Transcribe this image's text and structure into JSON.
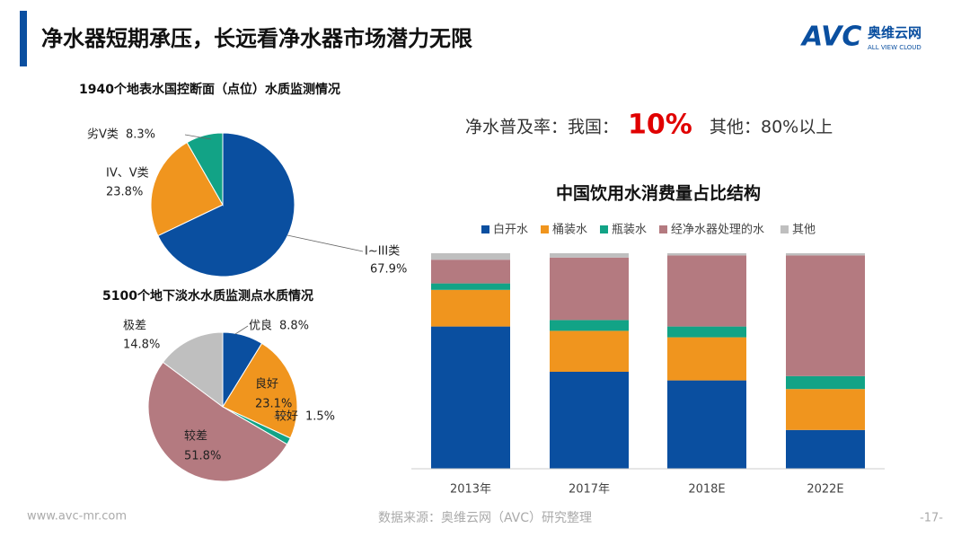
{
  "header": {
    "title": "净水器短期承压，长远看净水器市场潜力无限",
    "logo": "AVC",
    "logo_cn": "奥维云网",
    "logo_en": "ALL VIEW CLOUD"
  },
  "note": {
    "label": "净水普及率：我国：",
    "highlight": "10%",
    "other": "其他：80%以上"
  },
  "footer": {
    "site": "www.avc-mr.com",
    "source": "数据来源：奥维云网（AVC）研究整理",
    "page": "-17-"
  },
  "chart_data": [
    {
      "type": "pie",
      "title": "1940个地表水国控断面（点位）水质监测情况",
      "categories": [
        "I~III类",
        "IV、V类",
        "劣V类"
      ],
      "values": [
        67.9,
        23.8,
        8.3
      ],
      "value_labels": [
        "67.9%",
        "23.8%",
        "8.3%"
      ],
      "colors": [
        "#0a4fa0",
        "#f0951e",
        "#12a386"
      ]
    },
    {
      "type": "pie",
      "title": "5100个地下淡水水质监测点水质情况",
      "categories": [
        "优良",
        "良好",
        "较好",
        "较差",
        "极差"
      ],
      "values": [
        8.8,
        23.1,
        1.5,
        51.8,
        14.8
      ],
      "value_labels": [
        "8.8%",
        "23.1%",
        "1.5%",
        "51.8%",
        "14.8%"
      ],
      "colors": [
        "#0a4fa0",
        "#f0951e",
        "#12a386",
        "#b47a80",
        "#bfbfbf"
      ]
    },
    {
      "type": "stacked_bar",
      "title": "中国饮用水消费量占比结构",
      "categories": [
        "2013年",
        "2017年",
        "2018E",
        "2022E"
      ],
      "ylim": [
        0,
        100
      ],
      "series": [
        {
          "name": "白开水",
          "color": "#0a4fa0",
          "values": [
            66,
            45,
            41,
            18
          ]
        },
        {
          "name": "桶装水",
          "color": "#f0951e",
          "values": [
            17,
            19,
            20,
            19
          ]
        },
        {
          "name": "瓶装水",
          "color": "#12a386",
          "values": [
            3,
            5,
            5,
            6
          ]
        },
        {
          "name": "经净水器处理的水",
          "color": "#b47a80",
          "values": [
            11,
            29,
            33,
            56
          ]
        },
        {
          "name": "其他",
          "color": "#bfbfbf",
          "values": [
            3,
            2,
            1,
            1
          ]
        }
      ]
    }
  ]
}
